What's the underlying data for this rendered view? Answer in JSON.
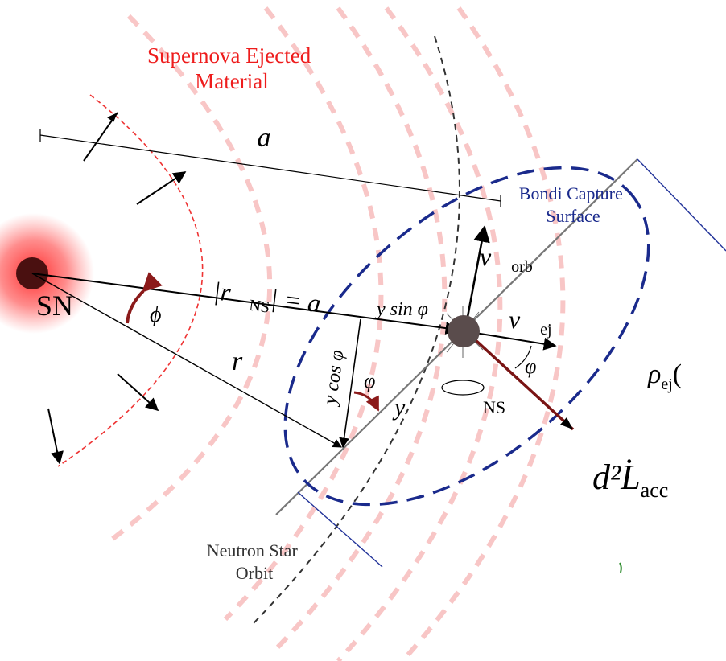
{
  "labels": {
    "supernova": [
      "Supernova Ejected",
      "Material"
    ],
    "a": "a",
    "bondi": [
      "Bondi Capture",
      "Surface"
    ],
    "sn": "SN",
    "phi": "ϕ",
    "r_ns": {
      "pre": "|r⃗",
      "sub": "NS",
      "post": "| = a"
    },
    "y_sin": "y sin φ",
    "v_orb": {
      "base": "v⃗",
      "sub": "orb"
    },
    "v_ej": {
      "base": "v⃗",
      "sub": "ej"
    },
    "r": "r⃗",
    "y_cos": "y cos φ",
    "varphi_1": "φ",
    "y": "y",
    "varphi_2": "φ",
    "ns": "NS",
    "rho": {
      "base": "ρ",
      "sub": "ej",
      "post": "("
    },
    "lum": {
      "base": "d²L̇",
      "sub": "acc"
    },
    "orbit": [
      "Neutron Star",
      "Orbit"
    ]
  }
}
